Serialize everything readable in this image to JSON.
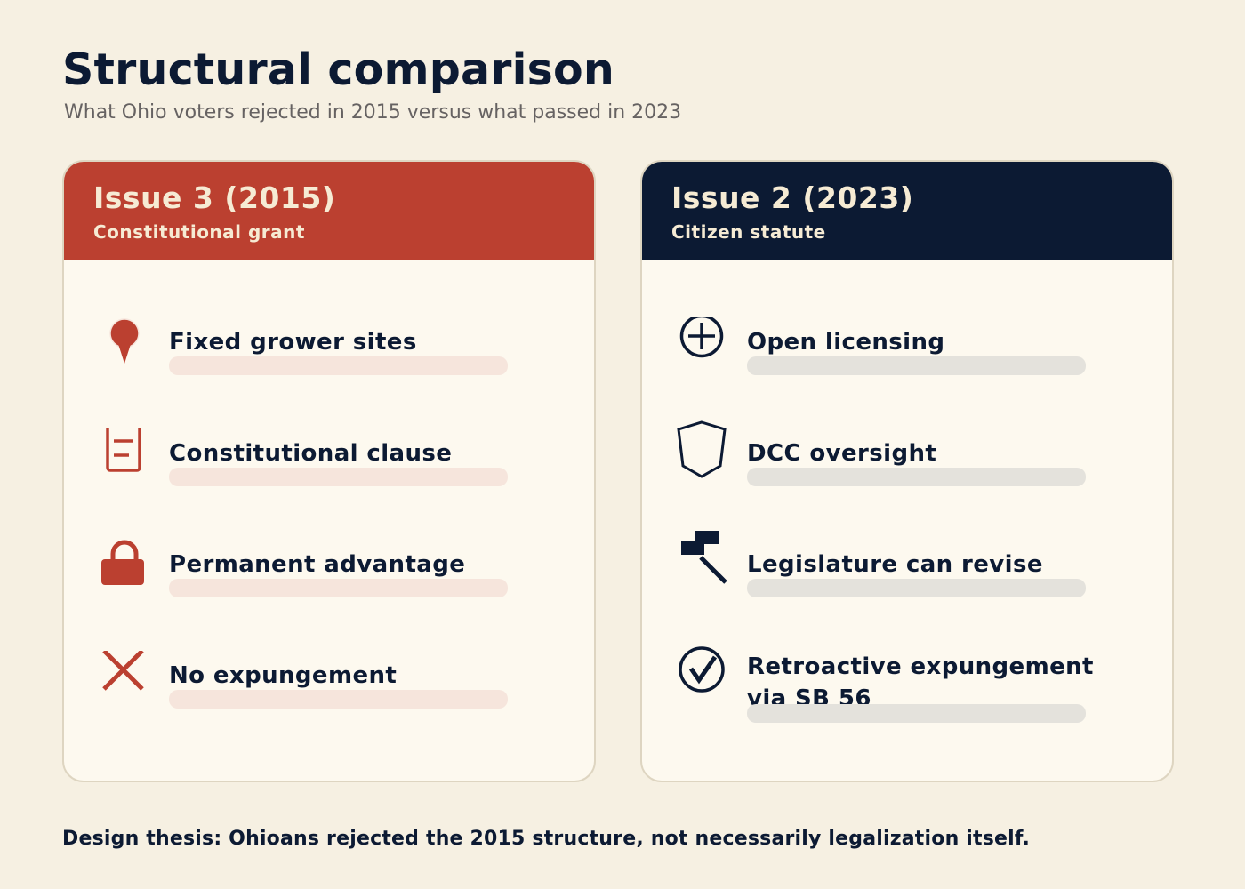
{
  "page": {
    "title": "Structural comparison",
    "subtitle": "What Ohio voters rejected in 2015 versus what passed in 2023",
    "footer": "Design thesis: Ohioans rejected the 2015 structure, not necessarily legalization itself."
  },
  "colors": {
    "background": "#f6f0e2",
    "navy": "#0c1a33",
    "red": "#bb4030",
    "card_bg": "#fdf9ef",
    "header_text": "#f6ebd4",
    "left_bar": "#f6e5dc",
    "right_bar": "#e4e2dc"
  },
  "left": {
    "title": "Issue 3 (2015)",
    "subtitle": "Constitutional grant",
    "items": [
      {
        "label": "Fixed grower sites",
        "icon": "map-pin-icon"
      },
      {
        "label": "Constitutional clause",
        "icon": "document-icon"
      },
      {
        "label": "Permanent advantage",
        "icon": "lock-icon"
      },
      {
        "label": "No expungement",
        "icon": "x-icon"
      }
    ]
  },
  "right": {
    "title": "Issue 2 (2023)",
    "subtitle": "Citizen statute",
    "items": [
      {
        "label": "Open licensing",
        "icon": "plus-circle-icon"
      },
      {
        "label": "DCC oversight",
        "icon": "shield-icon"
      },
      {
        "label": "Legislature can revise",
        "icon": "gavel-icon"
      },
      {
        "label": "Retroactive expungement via SB 56",
        "icon": "check-circle-icon"
      }
    ]
  }
}
